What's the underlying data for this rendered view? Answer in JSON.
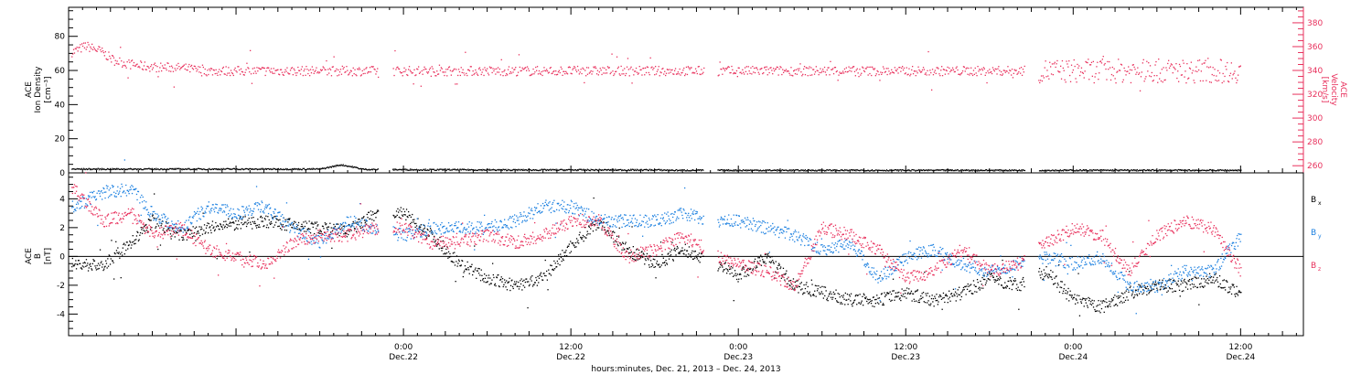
{
  "chart_data": [
    {
      "type": "scatter",
      "panel": "top",
      "ylabel": [
        "ACE",
        "Ion Density",
        "[cm⁻³]"
      ],
      "ylabel_right": [
        "ACE",
        "Velocity",
        "[km/s]"
      ],
      "ylim": [
        0,
        97
      ],
      "yticks": [
        0,
        20,
        40,
        60,
        80
      ],
      "ylim_right": [
        254,
        393
      ],
      "yticks_right": [
        260,
        280,
        300,
        320,
        340,
        360,
        380
      ],
      "series": [
        {
          "name": "ACE Ion Density",
          "color": "#000000",
          "axis": "left",
          "segments": [
            {
              "x": [
                -8,
                -6,
                -4.5,
                -3.5,
                -3,
                -2.5,
                -1.5,
                0,
                1.5,
                3,
                4.5,
                6.5,
                8.5,
                11,
                13.5,
                16,
                18,
                19.5
              ],
              "y": [
                2.5,
                2.5,
                5,
                3.5,
                2.5,
                2.3,
                2.2,
                2.2,
                2.1,
                2.1,
                2.1,
                2.0,
                2.0,
                2.0,
                2.0,
                2.0,
                2.0,
                1.8
              ]
            },
            {
              "x": [
                -13.6,
                -10.3
              ],
              "y": [
                1.2,
                1.2
              ]
            },
            {
              "x": [
                -13.6,
                -12,
                -11,
                -10.4
              ],
              "y": [
                2,
                2.2,
                3.2,
                2.5
              ]
            }
          ],
          "note": ""
        },
        {
          "name": "ACE Velocity",
          "color": "#e8305c",
          "axis": "right",
          "segments": [
            {
              "x": [
                -23.7,
                -22.8,
                -21.8,
                -20.8,
                -19.8,
                -18.7,
                -17.6,
                -16.6,
                -15.5,
                -14.5
              ],
              "y": [
                356,
                361,
                357,
                349,
                346,
                344,
                343,
                343,
                342,
                340
              ]
            }
          ]
        }
      ]
    },
    {
      "type": "scatter",
      "panel": "bottom",
      "ylabel": [
        "ACE",
        "B",
        "[nT]"
      ],
      "ylim": [
        -5.5,
        5.8
      ],
      "yticks": [
        -4,
        -2,
        0,
        2,
        4
      ],
      "zero_line": 0,
      "x_tick_labels": [
        "0:00",
        "12:00",
        "0:00",
        "12:00",
        "0:00",
        "12:00"
      ],
      "x_date_labels": [
        "Dec.22",
        "Dec.22",
        "Dec.23",
        "Dec.23",
        "Dec.24",
        "Dec.24"
      ],
      "x_tick_hours": [
        0,
        12,
        24,
        36,
        48,
        60
      ],
      "xlim_hours": [
        -24,
        64.5
      ],
      "xlabel": "hours:minutes, Dec. 21, 2013 – Dec. 24, 2013",
      "data_gaps_hours": [
        [
          -1.8,
          -0.8
        ],
        [
          21.5,
          22.5
        ],
        [
          44.5,
          45.5
        ]
      ],
      "data_end_hour": 60,
      "series": [
        {
          "name": "Bx",
          "label": "B",
          "sub": "x",
          "color": "#000000",
          "x": [
            -23.7,
            -21.5,
            -19.5,
            -18,
            -16,
            -14,
            -12,
            -10,
            -8,
            -6,
            -4,
            -2,
            0,
            2,
            4,
            6,
            8,
            10,
            12,
            14,
            16,
            18,
            20,
            22.5,
            24,
            26,
            28,
            30,
            32,
            34,
            36,
            38,
            40,
            42,
            44,
            46,
            48,
            50,
            52,
            54,
            56,
            58,
            60
          ],
          "y": [
            -0.5,
            -0.6,
            1.0,
            2.5,
            1.5,
            2.0,
            2.3,
            2.5,
            2.2,
            2.0,
            1.8,
            3.0,
            3.0,
            1.5,
            -0.5,
            -1.5,
            -2.0,
            -1.5,
            0.8,
            2.5,
            0.5,
            -0.5,
            0.5,
            -0.5,
            -1.3,
            0.0,
            -2.0,
            -2.5,
            -3.0,
            -3.0,
            -2.5,
            -3.0,
            -2.5,
            -1.5,
            -2.0,
            -1.0,
            -3.0,
            -3.5,
            -2.5,
            -2.0,
            -2.0,
            -1.5,
            -2.5
          ]
        },
        {
          "name": "By",
          "label": "B",
          "sub": "y",
          "color": "#1a7fe0",
          "x": [
            -23.7,
            -21.5,
            -19.5,
            -18,
            -16,
            -14,
            -12,
            -10,
            -8,
            -6,
            -4,
            -2,
            0,
            2,
            4,
            6,
            8,
            10,
            12,
            14,
            16,
            18,
            20,
            22.5,
            24,
            26,
            28,
            30,
            32,
            34,
            36,
            38,
            40,
            42,
            44,
            46,
            48,
            50,
            52,
            54,
            56,
            58,
            60
          ],
          "y": [
            3.5,
            4.5,
            4.7,
            3.0,
            2.0,
            3.5,
            3.0,
            3.5,
            2.0,
            1.0,
            2.5,
            2.0,
            1.5,
            2.0,
            2.0,
            2.0,
            2.5,
            3.5,
            3.5,
            2.5,
            2.5,
            2.5,
            3.0,
            2.5,
            2.5,
            2.0,
            1.5,
            0.5,
            1.0,
            -1.5,
            0.0,
            0.5,
            -0.5,
            -1.0,
            -0.5,
            0.0,
            -0.5,
            0.0,
            -2.0,
            -2.0,
            -1.0,
            -1.0,
            1.5
          ]
        },
        {
          "name": "Bz",
          "label": "B",
          "sub": "z",
          "color": "#e8305c",
          "x": [
            -23.7,
            -21.5,
            -19.5,
            -18,
            -16,
            -14,
            -12,
            -10,
            -8,
            -6,
            -4,
            -2,
            0,
            2,
            4,
            6,
            8,
            10,
            12,
            14,
            16,
            18,
            20,
            22.5,
            24,
            26,
            28,
            30,
            32,
            34,
            36,
            38,
            40,
            42,
            44,
            46,
            48,
            50,
            52,
            54,
            56,
            58,
            60
          ],
          "y": [
            4.7,
            2.5,
            3.0,
            1.5,
            2.0,
            0.5,
            0.0,
            -0.5,
            1.0,
            1.5,
            1.5,
            2.0,
            2.0,
            1.0,
            1.0,
            1.5,
            1.0,
            1.5,
            2.5,
            2.5,
            0.0,
            0.5,
            1.5,
            0.0,
            -0.5,
            -1.0,
            -2.0,
            2.0,
            1.5,
            0.5,
            -1.5,
            -1.0,
            0.5,
            -1.0,
            -0.5,
            1.0,
            2.0,
            1.5,
            -1.0,
            1.5,
            2.5,
            2.0,
            -1.0
          ]
        }
      ]
    }
  ],
  "colors": {
    "black": "#000000",
    "blue": "#1a7fe0",
    "pink": "#e8305c"
  }
}
